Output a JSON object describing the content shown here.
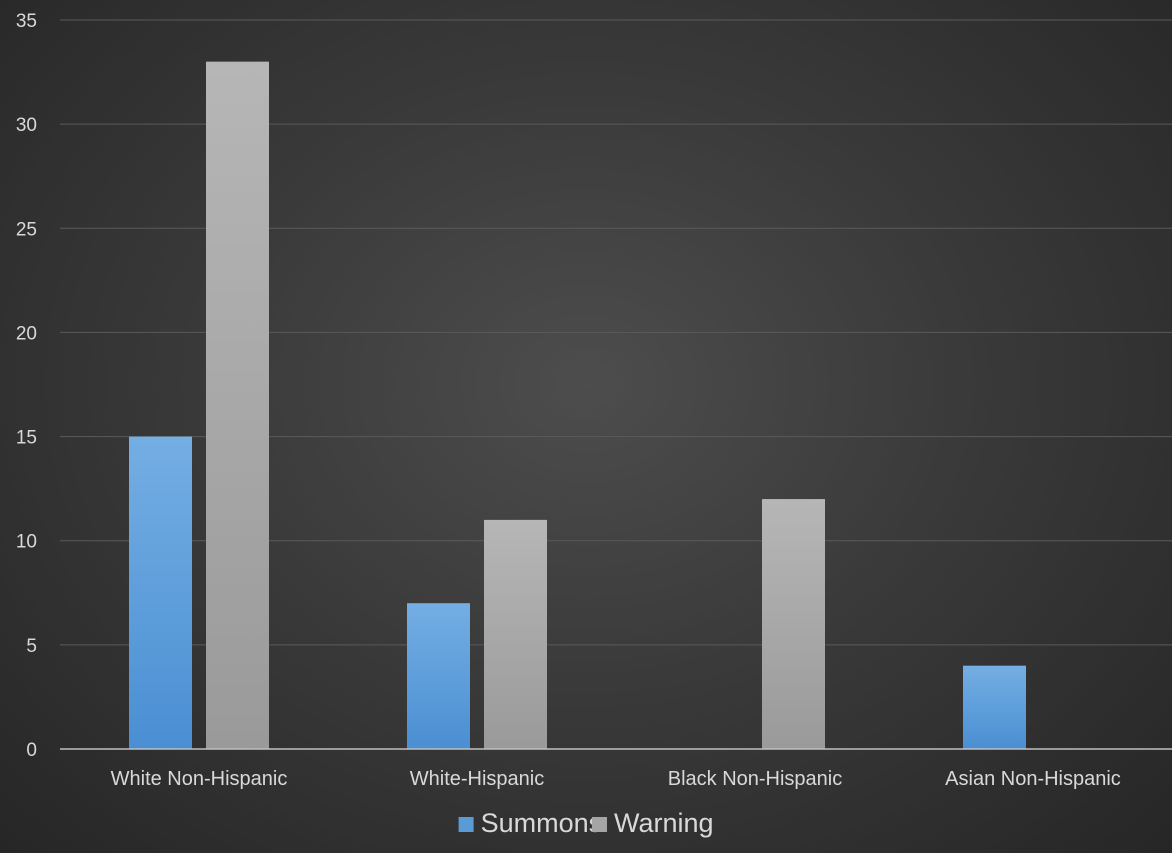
{
  "chart_data": {
    "type": "bar",
    "title": "",
    "xlabel": "",
    "ylabel": "",
    "categories": [
      "White Non-Hispanic",
      "White-Hispanic",
      "Black Non-Hispanic",
      "Asian Non-Hispanic"
    ],
    "series": [
      {
        "name": "Summons",
        "values": [
          15,
          7,
          0,
          4
        ],
        "color": "#5b9bd5"
      },
      {
        "name": "Warning",
        "values": [
          33,
          11,
          12,
          0
        ],
        "color": "#a5a5a5"
      }
    ],
    "ylim": [
      0,
      35
    ],
    "yticks": [
      0,
      5,
      10,
      15,
      20,
      25,
      30,
      35
    ],
    "grid": true,
    "legend_position": "bottom"
  }
}
